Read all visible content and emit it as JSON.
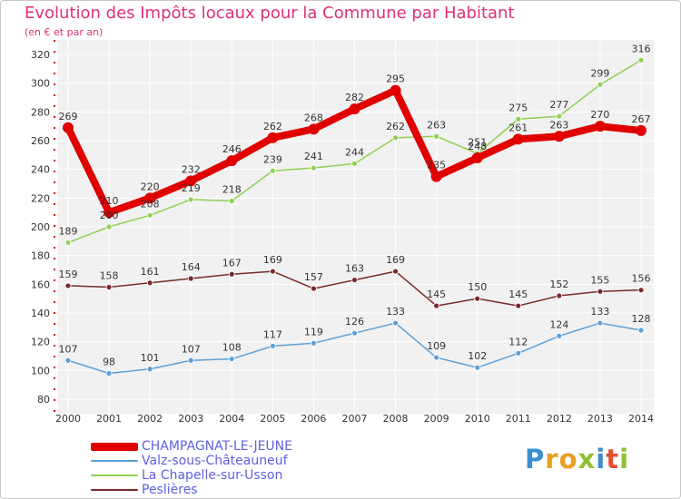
{
  "header": {
    "title": "Evolution des Impôts locaux pour la Commune par Habitant",
    "subtitle": "(en € et par an)"
  },
  "logo": {
    "letters": [
      {
        "ch": "P",
        "color": "#3a8fd0"
      },
      {
        "ch": "r",
        "color": "#e8a020"
      },
      {
        "ch": "o",
        "color": "#e8a020"
      },
      {
        "ch": "x",
        "color": "#90c030"
      },
      {
        "ch": "i",
        "color": "#3a8fd0"
      },
      {
        "ch": "t",
        "color": "#e05030"
      },
      {
        "ch": "i",
        "color": "#90c030"
      }
    ]
  },
  "chart_data": {
    "type": "line",
    "title": "Evolution des Impôts locaux pour la Commune par Habitant",
    "subtitle": "(en € et par an)",
    "categories": [
      "2000",
      "2001",
      "2002",
      "2003",
      "2004",
      "2005",
      "2006",
      "2007",
      "2008",
      "2009",
      "2010",
      "2011",
      "2012",
      "2013",
      "2014"
    ],
    "ylim": [
      80,
      320
    ],
    "yticks": [
      80,
      100,
      120,
      140,
      160,
      180,
      200,
      220,
      240,
      260,
      280,
      300,
      320
    ],
    "grid": true,
    "legend_position": "bottom-left",
    "series": [
      {
        "name": "CHAMPAGNAT-LE-JEUNE",
        "color": "#e00000",
        "emphasis": true,
        "values": [
          269,
          210,
          220,
          232,
          246,
          262,
          268,
          282,
          295,
          235,
          248,
          261,
          263,
          270,
          267
        ]
      },
      {
        "name": "Valz-sous-Châteauneuf",
        "color": "#5aa0d8",
        "emphasis": false,
        "values": [
          107,
          98,
          101,
          107,
          108,
          117,
          119,
          126,
          133,
          109,
          102,
          112,
          124,
          133,
          128
        ]
      },
      {
        "name": "La Chapelle-sur-Usson",
        "color": "#90d050",
        "emphasis": false,
        "values": [
          189,
          200,
          208,
          219,
          218,
          239,
          241,
          244,
          262,
          263,
          251,
          275,
          277,
          299,
          316
        ]
      },
      {
        "name": "Peslières",
        "color": "#7a2a2a",
        "emphasis": false,
        "values": [
          159,
          158,
          161,
          164,
          167,
          169,
          157,
          163,
          169,
          145,
          150,
          145,
          152,
          155,
          156
        ]
      }
    ]
  }
}
